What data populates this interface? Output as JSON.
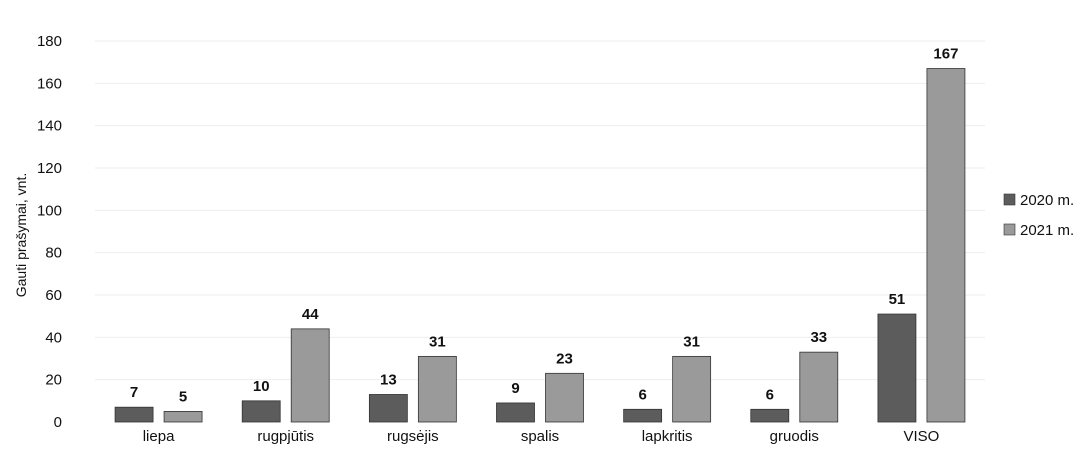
{
  "colors": {
    "series_2020": "#5c5c5c",
    "series_2021": "#9a9a9a",
    "grid": "#eeeeee"
  },
  "chart_data": {
    "type": "bar",
    "title": "",
    "xlabel": "",
    "ylabel": "Gauti prašymai, vnt.",
    "ylim": [
      0,
      180
    ],
    "yticks": [
      0,
      20,
      40,
      60,
      80,
      100,
      120,
      140,
      160,
      180
    ],
    "grid": true,
    "legend_position": "right",
    "categories": [
      "liepa",
      "rugpjūtis",
      "rugsėjis",
      "spalis",
      "lapkritis",
      "gruodis",
      "VISO"
    ],
    "series": [
      {
        "name": "2020 m.",
        "values": [
          7,
          10,
          13,
          9,
          6,
          6,
          51
        ]
      },
      {
        "name": "2021 m.",
        "values": [
          5,
          44,
          31,
          23,
          31,
          33,
          167
        ]
      }
    ]
  }
}
